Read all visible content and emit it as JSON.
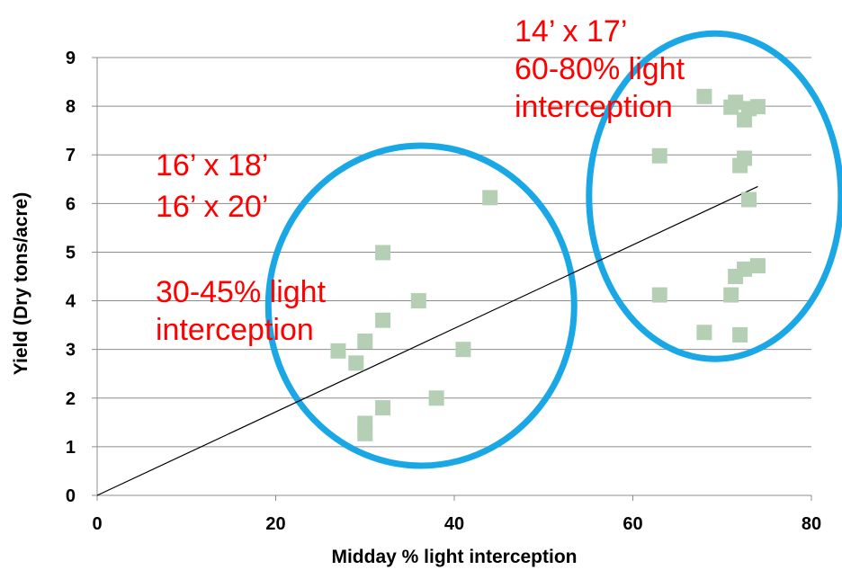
{
  "chart_data": {
    "type": "scatter",
    "xlabel": "Midday % light interception",
    "ylabel": "Yield (Dry tons/acre)",
    "xlim": [
      0,
      80
    ],
    "ylim": [
      0,
      9
    ],
    "x_ticks": [
      "0",
      "20",
      "40",
      "60",
      "80"
    ],
    "y_ticks": [
      "0",
      "1",
      "2",
      "3",
      "4",
      "5",
      "6",
      "7",
      "8",
      "9"
    ],
    "grid": "horizontal",
    "marker_color": "#b5cfb5",
    "trendline_color": "#000000",
    "ellipse_color": "#1aa7e6",
    "annotation_color": "#ff0000",
    "trendline": {
      "x": [
        0,
        74
      ],
      "y": [
        0,
        6.35
      ]
    },
    "points": [
      {
        "x": 27,
        "y": 2.97
      },
      {
        "x": 29,
        "y": 2.72
      },
      {
        "x": 30,
        "y": 3.17
      },
      {
        "x": 30,
        "y": 1.48
      },
      {
        "x": 30,
        "y": 1.27
      },
      {
        "x": 32,
        "y": 4.99
      },
      {
        "x": 32,
        "y": 3.6
      },
      {
        "x": 32,
        "y": 1.8
      },
      {
        "x": 36,
        "y": 4.0
      },
      {
        "x": 38,
        "y": 2.0
      },
      {
        "x": 41,
        "y": 3.0
      },
      {
        "x": 44,
        "y": 6.12
      },
      {
        "x": 63,
        "y": 6.98
      },
      {
        "x": 63,
        "y": 4.12
      },
      {
        "x": 68,
        "y": 8.2
      },
      {
        "x": 68,
        "y": 3.35
      },
      {
        "x": 71,
        "y": 7.98
      },
      {
        "x": 71,
        "y": 4.12
      },
      {
        "x": 71.5,
        "y": 8.08
      },
      {
        "x": 71.5,
        "y": 4.5
      },
      {
        "x": 72,
        "y": 6.78
      },
      {
        "x": 72,
        "y": 3.3
      },
      {
        "x": 72.5,
        "y": 7.72
      },
      {
        "x": 72.5,
        "y": 6.93
      },
      {
        "x": 72.5,
        "y": 4.65
      },
      {
        "x": 73,
        "y": 7.95
      },
      {
        "x": 73,
        "y": 6.08
      },
      {
        "x": 74,
        "y": 7.99
      },
      {
        "x": 74,
        "y": 4.72
      }
    ],
    "annotations": [
      {
        "lines": [
          "14’ x 17’",
          "60-80% light",
          "interception"
        ]
      },
      {
        "lines": [
          "16’ x 18’",
          "16’ x 20’"
        ]
      },
      {
        "lines": [
          "30-45% light",
          "interception"
        ]
      }
    ]
  }
}
